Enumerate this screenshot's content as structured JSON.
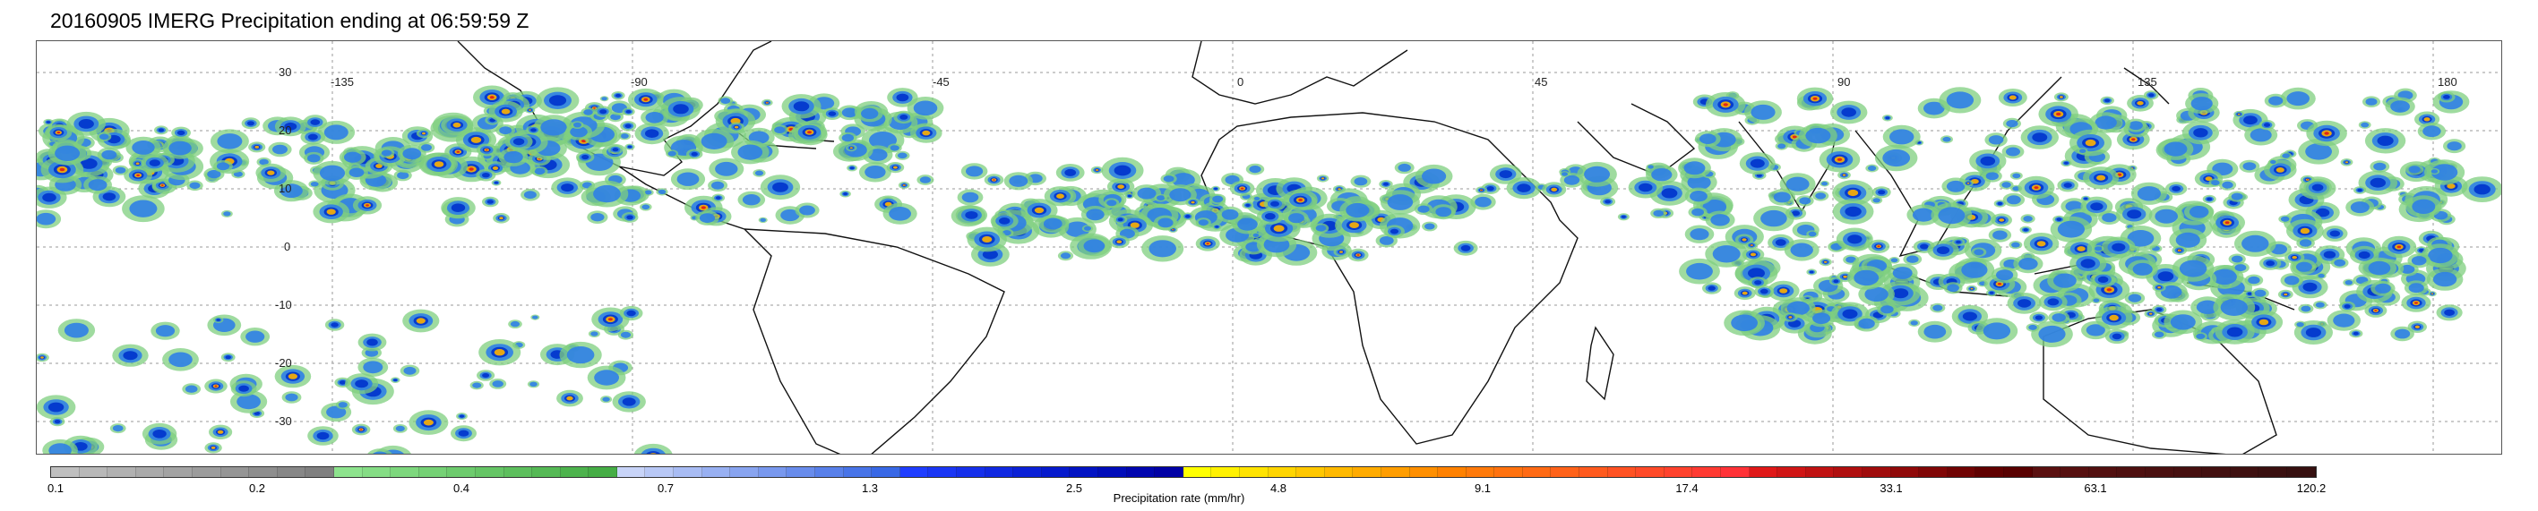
{
  "title": "20160905 IMERG Precipitation ending at 06:59:59 Z",
  "map": {
    "lon_labels": [
      "-135",
      "-90",
      "-45",
      "0",
      "45",
      "90",
      "135",
      "180"
    ],
    "lat_labels": [
      "30",
      "20",
      "10",
      "0",
      "-10",
      "-20",
      "-30"
    ],
    "coastline_color": "#111111",
    "grid_color": "#9a9a9a"
  },
  "colorbar": {
    "title": "Precipitation rate (mm/hr)",
    "tick_labels": [
      "0.1",
      "0.2",
      "0.4",
      "0.7",
      "1.3",
      "2.5",
      "4.8",
      "9.1",
      "17.4",
      "33.1",
      "63.1",
      "120.2"
    ],
    "colors": [
      "#bfbfbf",
      "#b8b8b8",
      "#b1b1b1",
      "#aaaaaa",
      "#a3a3a3",
      "#9c9c9c",
      "#959595",
      "#8e8e8e",
      "#878787",
      "#808080",
      "#8de38d",
      "#85dd85",
      "#7dd77d",
      "#75d175",
      "#6dcb6d",
      "#65c565",
      "#5dbf5d",
      "#55b955",
      "#4db34d",
      "#45ad45",
      "#c8d4f8",
      "#b8c8f6",
      "#a8bcf4",
      "#98b0f2",
      "#88a4f0",
      "#7898ee",
      "#688cec",
      "#5880ea",
      "#4874e8",
      "#3868e6",
      "#1f3dff",
      "#1a36f5",
      "#152feb",
      "#1028e1",
      "#0b21d7",
      "#061acd",
      "#0213c3",
      "#000cb9",
      "#0005af",
      "#0000a5",
      "#ffff00",
      "#fff100",
      "#ffe300",
      "#ffd500",
      "#ffc700",
      "#ffb900",
      "#ffab00",
      "#ff9d00",
      "#ff8f00",
      "#ff8100",
      "#ff7a0a",
      "#ff720f",
      "#ff6a14",
      "#ff6219",
      "#ff5a1e",
      "#ff5223",
      "#ff4a28",
      "#ff422d",
      "#ff3a32",
      "#ff3237",
      "#e01818",
      "#d01515",
      "#c01212",
      "#b00f0f",
      "#a00c0c",
      "#900909",
      "#800606",
      "#700303",
      "#600000",
      "#580000",
      "#5a1010",
      "#561010",
      "#521010",
      "#4e1010",
      "#4a1010",
      "#461010",
      "#421010",
      "#3e1010",
      "#3a1010",
      "#361010"
    ]
  },
  "precip_colors": {
    "light": "#7fcf7f",
    "moderate": "#2f7fe6",
    "heavy": "#0033cc",
    "intense": "#ffb300",
    "extreme": "#e01818"
  }
}
